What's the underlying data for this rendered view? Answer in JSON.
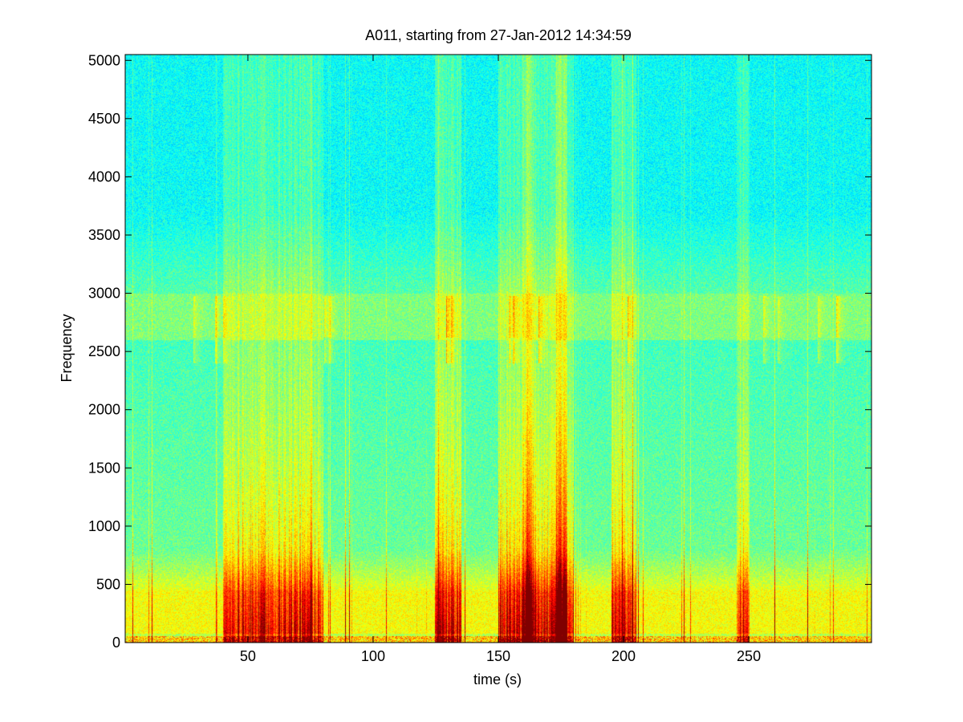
{
  "chart_data": {
    "type": "heatmap",
    "title": "A011, starting from 27-Jan-2012 14:34:59",
    "xlabel": "time (s)",
    "ylabel": "Frequency",
    "xlim": [
      1,
      299
    ],
    "ylim": [
      0,
      5050
    ],
    "x_ticks": [
      50,
      100,
      150,
      200,
      250
    ],
    "y_ticks": [
      0,
      500,
      1000,
      1500,
      2000,
      2500,
      3000,
      3500,
      4000,
      4500,
      5000
    ],
    "grid": false,
    "colormap": "jet",
    "colors": {
      "background_high_freq": "#1fe8d2",
      "mid_band": "#7cf08a",
      "low_band": "#f2f21a",
      "hotspots": "#d11f0f"
    },
    "features": {
      "horizontal_bands_hz": [
        2500,
        2800
      ],
      "high_energy_time_ranges_s": [
        [
          40,
          80
        ],
        [
          125,
          135
        ],
        [
          150,
          180
        ],
        [
          195,
          205
        ],
        [
          245,
          250
        ]
      ],
      "strongest_event_s": 162
    }
  }
}
